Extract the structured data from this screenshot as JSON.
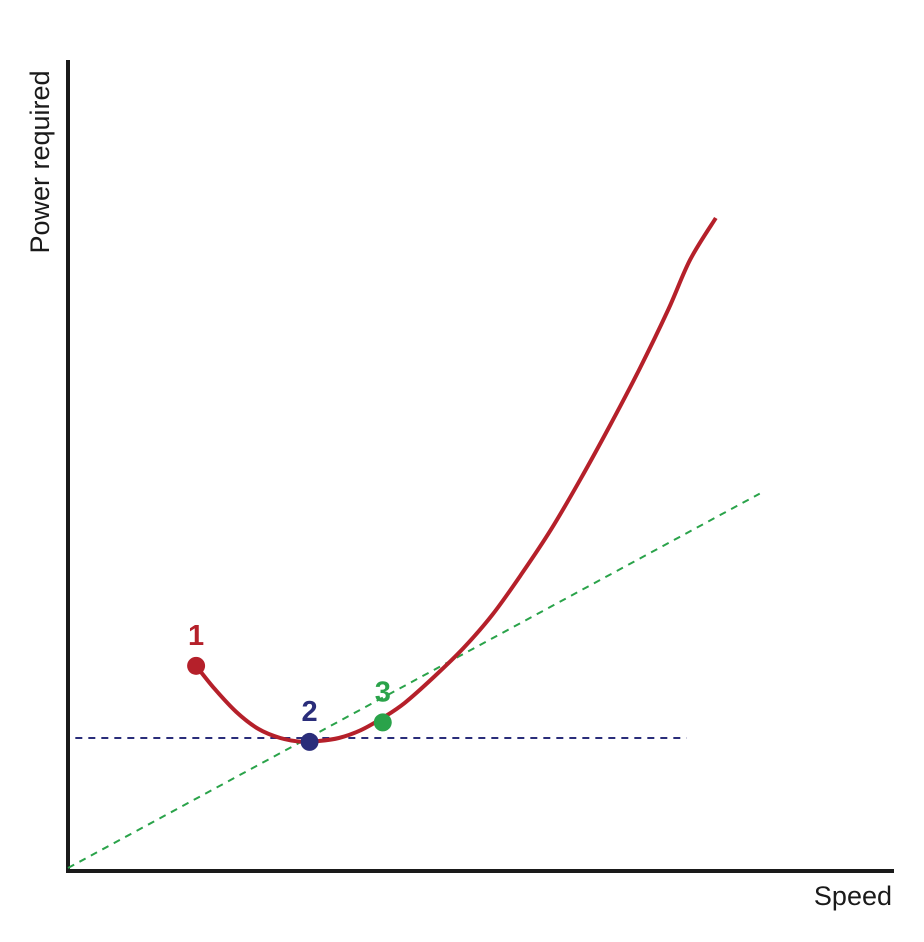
{
  "chart_data": {
    "type": "line",
    "xlabel": "Speed",
    "ylabel": "Power required",
    "xlim": [
      0,
      100
    ],
    "ylim": [
      0,
      100
    ],
    "grid": false,
    "legend": "none",
    "series": [
      {
        "kind": "curve",
        "color": "#b5202a",
        "x": [
          17.5,
          20,
          23,
          26,
          29,
          32,
          34,
          37,
          40,
          43,
          46,
          50,
          54,
          58,
          62,
          66,
          70,
          74,
          78,
          82,
          85,
          88.5
        ],
        "y": [
          31.1,
          27.6,
          24.0,
          21.4,
          20.0,
          19.4,
          19.5,
          20.0,
          21.2,
          23.1,
          25.4,
          29.4,
          33.8,
          39.0,
          45.3,
          52.1,
          59.8,
          68.0,
          76.6,
          85.9,
          93.6,
          100
        ]
      },
      {
        "kind": "horizontal-line",
        "style": "dashed",
        "color": "#2a2d7a",
        "x": [
          1,
          84.5
        ],
        "y": [
          20.0,
          20.0
        ]
      },
      {
        "kind": "tangent-line",
        "style": "dashed",
        "color": "#2aa34a",
        "x": [
          0,
          94.5
        ],
        "y": [
          0,
          57.6
        ]
      }
    ],
    "points": [
      {
        "label": "1",
        "x": 17.5,
        "y": 31.1,
        "color": "#b5202a"
      },
      {
        "label": "2",
        "x": 33,
        "y": 19.4,
        "color": "#2a2d7a"
      },
      {
        "label": "3",
        "x": 43,
        "y": 22.4,
        "color": "#2aa34a"
      }
    ]
  }
}
